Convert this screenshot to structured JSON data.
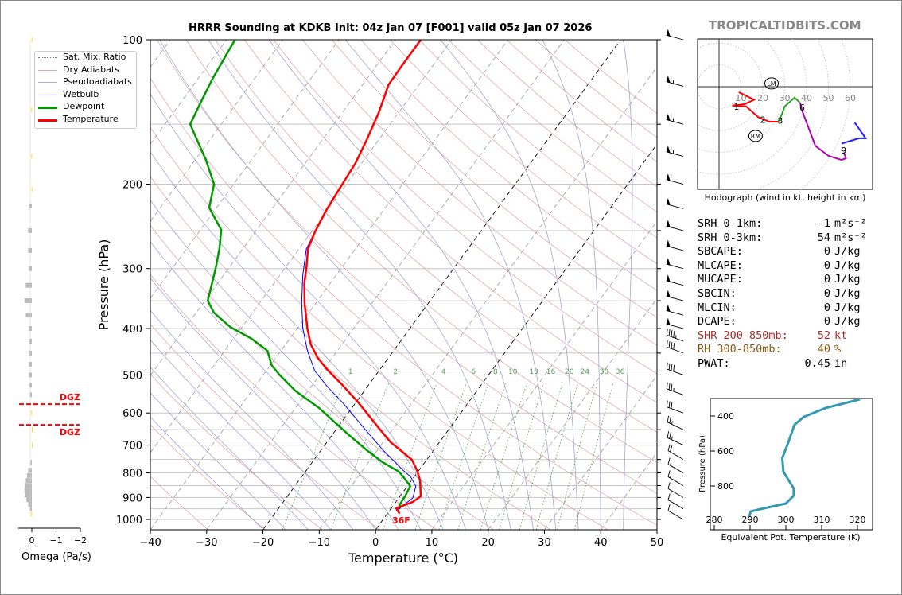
{
  "title": "HRRR Sounding at KDKB Init: 04z Jan 07 [F001] valid 05z Jan 07 2026",
  "brand": "TROPICALTIDBITS.COM",
  "legend": [
    {
      "label": "Sat. Mix. Ratio",
      "color": "#4a9a4a",
      "style": "dotted"
    },
    {
      "label": "Dry Adiabats",
      "color": "#d9a8a8",
      "style": "solid"
    },
    {
      "label": "Pseudoadiabats",
      "color": "#aaaad8",
      "style": "solid"
    },
    {
      "label": "Wetbulb",
      "color": "#0000ff",
      "style": "solid"
    },
    {
      "label": "Dewpoint",
      "color": "#009900",
      "style": "thick"
    },
    {
      "label": "Temperature",
      "color": "#ff0000",
      "style": "thick"
    }
  ],
  "stats": [
    {
      "key": "SRH 0-1km:",
      "value": "-1",
      "unit": "m²s⁻²",
      "color": "#000"
    },
    {
      "key": "SRH 0-3km:",
      "value": "54",
      "unit": "m²s⁻²",
      "color": "#000"
    },
    {
      "key": "SBCAPE:",
      "value": "0",
      "unit": "J/kg",
      "color": "#000"
    },
    {
      "key": "MLCAPE:",
      "value": "0",
      "unit": "J/kg",
      "color": "#000"
    },
    {
      "key": "MUCAPE:",
      "value": "0",
      "unit": "J/kg",
      "color": "#000"
    },
    {
      "key": "SBCIN:",
      "value": "0",
      "unit": "J/kg",
      "color": "#000"
    },
    {
      "key": "MLCIN:",
      "value": "0",
      "unit": "J/kg",
      "color": "#000"
    },
    {
      "key": "DCAPE:",
      "value": "0",
      "unit": "J/kg",
      "color": "#000"
    },
    {
      "key": "SHR 200-850mb:",
      "value": "52",
      "unit": "kt",
      "color": "#a52a2a"
    },
    {
      "key": "RH 300-850mb:",
      "value": "40",
      "unit": "%",
      "color": "#8b5a14"
    },
    {
      "key": "PWAT:",
      "value": "0.45",
      "unit": "in",
      "color": "#000"
    }
  ],
  "chart_data": [
    {
      "type": "line",
      "name": "skewt",
      "xlabel": "Temperature (°C)",
      "ylabel": "Pressure (hPa)",
      "xlim": [
        -40,
        50
      ],
      "ylim": [
        1050,
        100
      ],
      "xticks": [
        "−40",
        "−30",
        "−20",
        "−10",
        "0",
        "10",
        "20",
        "30",
        "40",
        "50"
      ],
      "xtick_values": [
        -40,
        -30,
        -20,
        -10,
        0,
        10,
        20,
        30,
        40,
        50
      ],
      "yticks": [
        "100",
        "200",
        "300",
        "400",
        "500",
        "600",
        "700",
        "800",
        "900",
        "1000"
      ],
      "ytick_values": [
        100,
        200,
        300,
        400,
        500,
        600,
        700,
        800,
        900,
        1000
      ],
      "surface_temp_label": "36F",
      "temperature": {
        "p": [
          973,
          948,
          919,
          895,
          829,
          789,
          751,
          690,
          645,
          571,
          525,
          486,
          459,
          432,
          400,
          354,
          322,
          298,
          273,
          251,
          226,
          200,
          181,
          162,
          142,
          124,
          112,
          100
        ],
        "t": [
          2.2,
          0.9,
          3.0,
          3.7,
          1.5,
          -0.4,
          -2.6,
          -8.7,
          -12.6,
          -19.5,
          -24.6,
          -29.5,
          -32.7,
          -35.5,
          -38.2,
          -42,
          -44.6,
          -46.3,
          -48.4,
          -49.4,
          -50.2,
          -50.7,
          -51.1,
          -52.1,
          -53.5,
          -55.4,
          -55.5,
          -55.5
        ]
      },
      "dewpoint": {
        "p": [
          962,
          926,
          895,
          852,
          820,
          795,
          760,
          717,
          665,
          628,
          586,
          539,
          499,
          477,
          445,
          420,
          397,
          371,
          350,
          322,
          298,
          271,
          249,
          224,
          200,
          178,
          150,
          136,
          121,
          100
        ],
        "t": [
          1.4,
          1.0,
          0.9,
          0.5,
          -1.6,
          -3.4,
          -7.5,
          -11.9,
          -17.2,
          -21.1,
          -25.8,
          -32.3,
          -37.2,
          -39.8,
          -42.4,
          -46.8,
          -52.1,
          -56.8,
          -59.5,
          -61,
          -62.4,
          -64.3,
          -66.3,
          -71.3,
          -73.5,
          -78.1,
          -85.5,
          -86.4,
          -87.4,
          -88.5
        ]
      },
      "wetbulb": {
        "p": [
          962,
          937,
          902,
          852,
          814,
          789,
          717,
          640,
          571,
          528,
          490,
          445,
          400,
          354,
          310,
          273,
          251,
          226,
          200,
          181,
          162,
          142,
          124,
          112,
          100
        ],
        "t": [
          1.4,
          1.7,
          2.5,
          1.5,
          -0.7,
          -2.9,
          -9.0,
          -15.7,
          -22.3,
          -27.2,
          -31.4,
          -35.3,
          -39,
          -42.5,
          -45.9,
          -48.7,
          -49.4,
          -50.2,
          -50.7,
          -51.1,
          -52.1,
          -53.5,
          -55.4,
          -55.5,
          -55.5
        ]
      },
      "mixing_ratio_labels": [
        "1",
        "2",
        "4",
        "6",
        "8",
        "10",
        "13",
        "16",
        "20",
        "24",
        "30",
        "36"
      ],
      "mixing_ratio_values": [
        1,
        2,
        4,
        6,
        8,
        10,
        13,
        16,
        20,
        24,
        30,
        36
      ],
      "wind_barbs": {
        "p": [
          100,
          125,
          150,
          175,
          200,
          225,
          250,
          275,
          300,
          325,
          350,
          375,
          400,
          425,
          450,
          500,
          550,
          600,
          650,
          700,
          750,
          800,
          850,
          900,
          950,
          1000
        ],
        "speed_kt": [
          60,
          65,
          65,
          65,
          60,
          55,
          55,
          55,
          55,
          55,
          55,
          50,
          50,
          45,
          40,
          40,
          35,
          30,
          25,
          25,
          20,
          15,
          15,
          10,
          10,
          10
        ],
        "dir_deg": [
          285,
          285,
          285,
          285,
          285,
          285,
          285,
          285,
          285,
          285,
          285,
          285,
          285,
          290,
          290,
          290,
          290,
          290,
          295,
          295,
          300,
          300,
          300,
          300,
          300,
          300
        ]
      }
    },
    {
      "type": "line",
      "name": "hodograph",
      "caption": "Hodograph (wind in kt, height in km)",
      "ring_labels": [
        "10",
        "20",
        "30",
        "40",
        "50",
        "60"
      ],
      "ring_values": [
        10,
        20,
        30,
        40,
        50,
        60
      ],
      "segments": [
        {
          "color": "#ff0000",
          "u": [
            9,
            16,
            11.6,
            6,
            12.4,
            18,
            23,
            27
          ],
          "v": [
            -2.5,
            -6,
            -8,
            -8.7,
            -9,
            -14,
            -16,
            -16
          ]
        },
        {
          "color": "#22a022",
          "u": [
            27,
            28.7,
            30,
            34.5,
            37
          ],
          "v": [
            -16,
            -12.7,
            -9,
            -5,
            -7.3
          ]
        },
        {
          "color": "#b000b0",
          "u": [
            37,
            38,
            44,
            50,
            56,
            58,
            57
          ],
          "v": [
            -7.3,
            -11,
            -27,
            -31.6,
            -33.5,
            -32.7,
            -30
          ]
        },
        {
          "color": "#2020ff",
          "u": [
            56,
            64,
            67,
            62
          ],
          "v": [
            -26,
            -23.6,
            -23.6,
            -16.4
          ]
        }
      ],
      "height_labels": [
        {
          "text": "1",
          "u": 8,
          "v": -9
        },
        {
          "text": "2",
          "u": 20,
          "v": -15
        },
        {
          "text": "3",
          "u": 28,
          "v": -15.5
        },
        {
          "text": "6",
          "u": 38,
          "v": -9.5
        },
        {
          "text": "9",
          "u": 57,
          "v": -29
        }
      ],
      "storm_motion": [
        {
          "text": "LM",
          "u": 24,
          "v": 1.5
        },
        {
          "text": "RM",
          "u": 16.7,
          "v": -22.5
        }
      ]
    },
    {
      "type": "line",
      "name": "theta-e",
      "xlabel": "Equivalent Pot. Temperature (K)",
      "ylabel": "Pressure (hPa)",
      "xticks": [
        "280",
        "290",
        "300",
        "310",
        "320"
      ],
      "xtick_values": [
        280,
        290,
        300,
        310,
        320
      ],
      "yticks": [
        "400",
        "600",
        "800"
      ],
      "ytick_values": [
        400,
        600,
        800
      ],
      "p": [
        305,
        355,
        405,
        450,
        550,
        641,
        718,
        814,
        855,
        900,
        927,
        945,
        973
      ],
      "theta_e": [
        320.7,
        311,
        305,
        302.4,
        300.7,
        299,
        299.3,
        302.2,
        302.2,
        300,
        294,
        290.2,
        289.8
      ]
    },
    {
      "type": "bar",
      "name": "omega",
      "xlabel": "Omega (Pa/s)",
      "xticks": [
        "0",
        "−1",
        "−2"
      ],
      "xtick_values": [
        0,
        -1,
        -2
      ],
      "dgz_label": "DGZ",
      "dgz_p": [
        575,
        635
      ],
      "p": [
        100,
        140,
        175,
        205,
        222,
        250,
        275,
        300,
        325,
        350,
        375,
        400,
        425,
        450,
        475,
        500,
        525,
        550,
        600,
        650,
        700,
        760,
        790,
        810,
        830,
        850,
        870,
        890,
        910,
        930,
        950,
        975
      ],
      "omega": [
        0.01,
        0.02,
        0.02,
        0.01,
        0.1,
        0.15,
        0.15,
        0.12,
        0.25,
        0.3,
        0.25,
        0.12,
        0.1,
        0.1,
        0.12,
        0.12,
        0.1,
        0.08,
        0.02,
        -0.02,
        -0.01,
        0.05,
        0.15,
        0.2,
        0.25,
        0.28,
        0.3,
        0.28,
        0.22,
        0.15,
        0.08,
        0.02
      ],
      "colors": [
        "#bbbbbb",
        "#f2e600"
      ]
    }
  ]
}
